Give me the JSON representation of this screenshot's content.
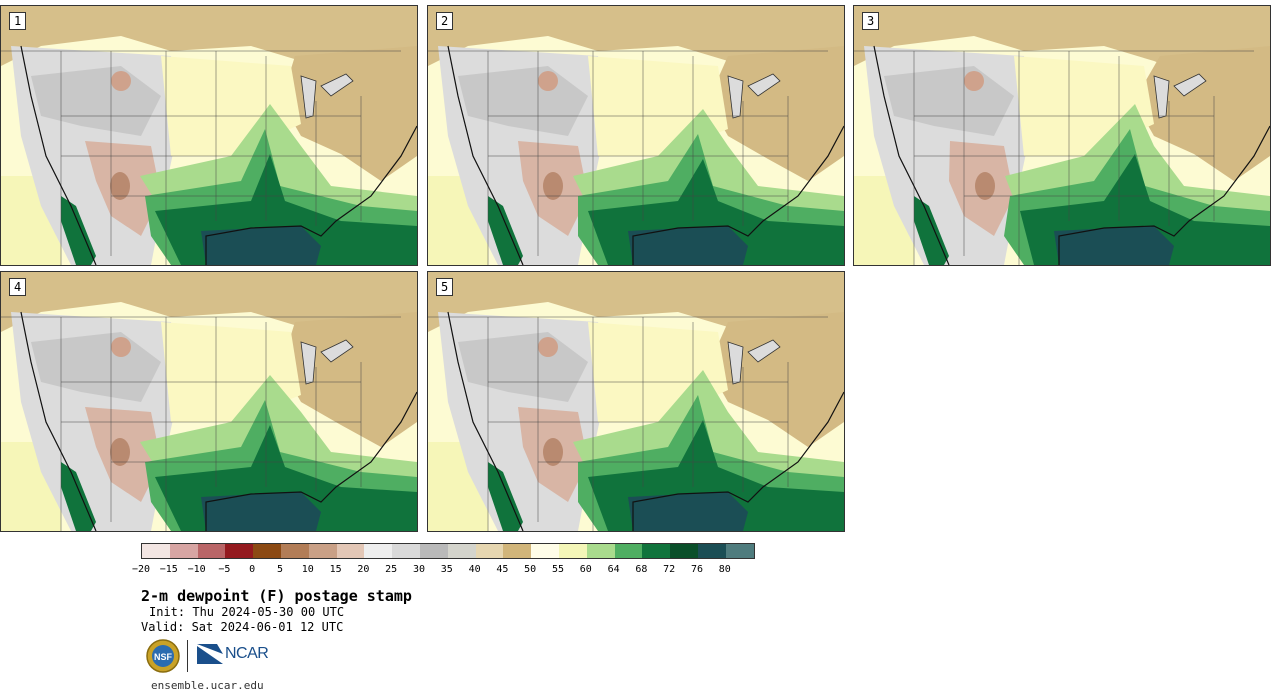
{
  "panels": [
    {
      "label": "1",
      "variant": 0
    },
    {
      "label": "2",
      "variant": 1
    },
    {
      "label": "3",
      "variant": 2
    },
    {
      "label": "4",
      "variant": 3
    },
    {
      "label": "5",
      "variant": 4
    }
  ],
  "colorbar": {
    "colors": [
      "#f3e6e3",
      "#d7a5a3",
      "#b96567",
      "#941a1f",
      "#8c4a14",
      "#b27d57",
      "#c9a086",
      "#e3c7b6",
      "#eeeeee",
      "#d9d9d9",
      "#b9b9b9",
      "#d4d4cc",
      "#e6d6b0",
      "#d1b57a",
      "#fffde8",
      "#f4f6b8",
      "#a9db8d",
      "#4fae62",
      "#10733c",
      "#0a4f2a",
      "#1b4e55",
      "#4f7c7e"
    ],
    "tick_labels": [
      "−20",
      "−15",
      "−10",
      "−5",
      "0",
      "5",
      "10",
      "15",
      "20",
      "25",
      "30",
      "35",
      "40",
      "45",
      "50",
      "55",
      "60",
      "64",
      "68",
      "72",
      "76",
      "80"
    ]
  },
  "title": "2-m dewpoint (F) postage stamp",
  "init": "Init: Thu 2024-05-30 00 UTC",
  "valid": "Valid: Sat 2024-06-01 12 UTC",
  "ncar_text": "NCAR",
  "nsf_text": "NSF",
  "site": "ensemble.ucar.edu"
}
